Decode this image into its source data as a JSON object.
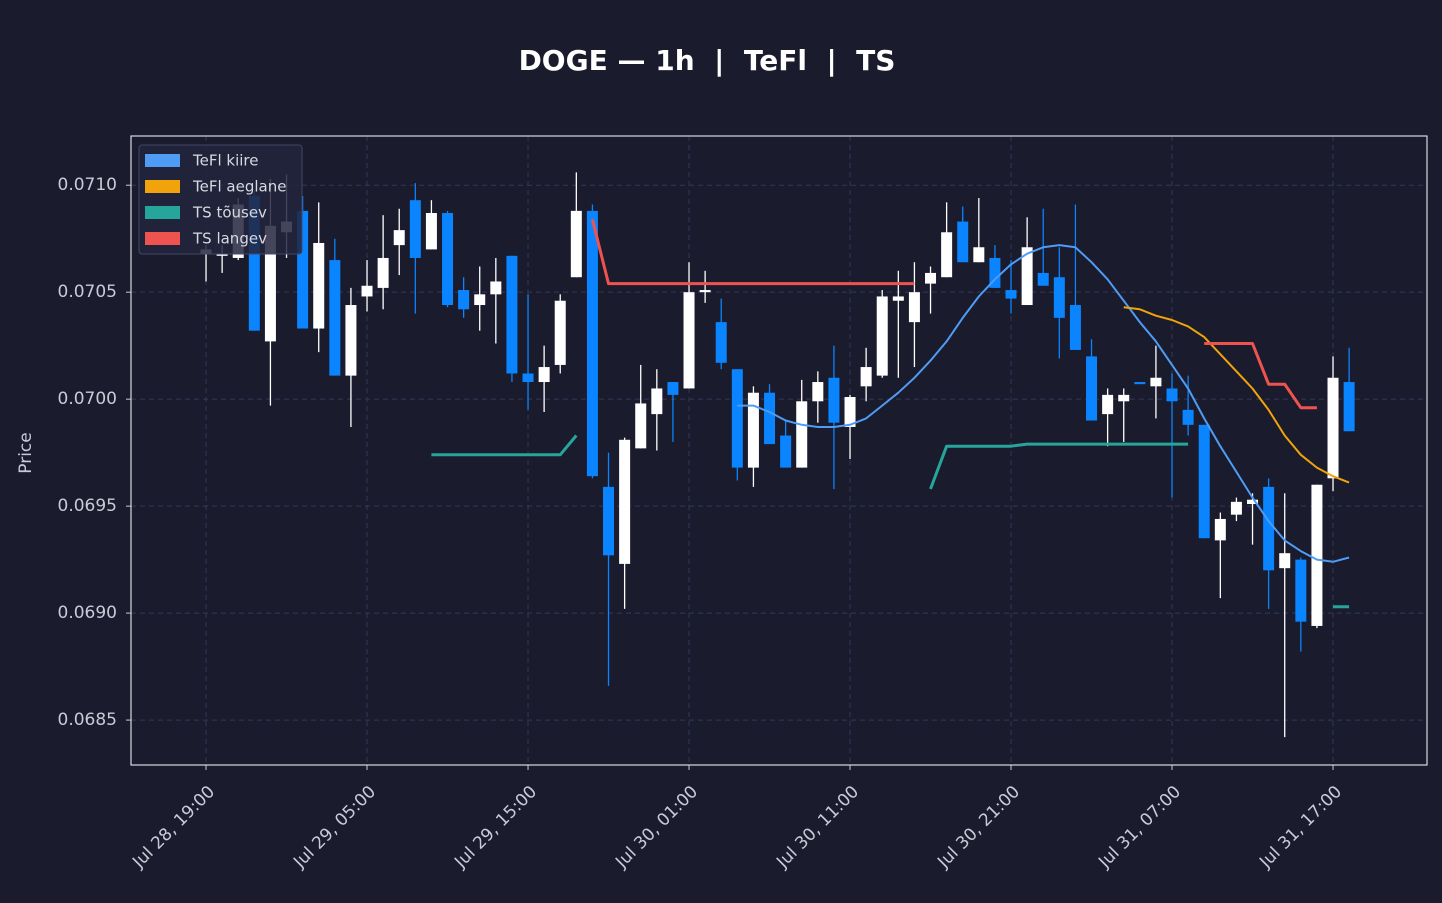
{
  "chart_data": {
    "type": "candlestick",
    "title": "DOGE — 1h  |  TeFl  |  TS",
    "y_label": "Price",
    "x": [
      "Jul 28, 19:00",
      "Jul 28, 20:00",
      "Jul 28, 21:00",
      "Jul 28, 22:00",
      "Jul 28, 23:00",
      "Jul 29, 00:00",
      "Jul 29, 01:00",
      "Jul 29, 02:00",
      "Jul 29, 03:00",
      "Jul 29, 04:00",
      "Jul 29, 05:00",
      "Jul 29, 06:00",
      "Jul 29, 07:00",
      "Jul 29, 08:00",
      "Jul 29, 09:00",
      "Jul 29, 10:00",
      "Jul 29, 11:00",
      "Jul 29, 12:00",
      "Jul 29, 13:00",
      "Jul 29, 14:00",
      "Jul 29, 15:00",
      "Jul 29, 16:00",
      "Jul 29, 17:00",
      "Jul 29, 18:00",
      "Jul 29, 19:00",
      "Jul 29, 20:00",
      "Jul 29, 21:00",
      "Jul 29, 22:00",
      "Jul 29, 23:00",
      "Jul 30, 00:00",
      "Jul 30, 01:00",
      "Jul 30, 02:00",
      "Jul 30, 03:00",
      "Jul 30, 04:00",
      "Jul 30, 05:00",
      "Jul 30, 06:00",
      "Jul 30, 07:00",
      "Jul 30, 08:00",
      "Jul 30, 09:00",
      "Jul 30, 10:00",
      "Jul 30, 11:00",
      "Jul 30, 12:00",
      "Jul 30, 13:00",
      "Jul 30, 14:00",
      "Jul 30, 15:00",
      "Jul 30, 16:00",
      "Jul 30, 17:00",
      "Jul 30, 18:00",
      "Jul 30, 19:00",
      "Jul 30, 20:00",
      "Jul 30, 21:00",
      "Jul 30, 22:00",
      "Jul 30, 23:00",
      "Jul 31, 00:00",
      "Jul 31, 01:00",
      "Jul 31, 02:00",
      "Jul 31, 03:00",
      "Jul 31, 04:00",
      "Jul 31, 05:00",
      "Jul 31, 06:00",
      "Jul 31, 07:00",
      "Jul 31, 08:00",
      "Jul 31, 09:00",
      "Jul 31, 10:00",
      "Jul 31, 11:00",
      "Jul 31, 12:00",
      "Jul 31, 13:00",
      "Jul 31, 14:00",
      "Jul 31, 15:00",
      "Jul 31, 16:00",
      "Jul 31, 17:00",
      "Jul 31, 18:00"
    ],
    "open": [
      0.07068,
      0.07067,
      0.07066,
      0.07095,
      0.07027,
      0.07078,
      0.07088,
      0.07033,
      0.07065,
      0.07011,
      0.07048,
      0.07052,
      0.07072,
      0.07093,
      0.0707,
      0.07087,
      0.07051,
      0.07044,
      0.07049,
      0.07067,
      0.07012,
      0.07008,
      0.07016,
      0.07057,
      0.07088,
      0.06959,
      0.06923,
      0.06977,
      0.06993,
      0.07008,
      0.07005,
      0.0705,
      0.07036,
      0.07014,
      0.06968,
      0.07003,
      0.06983,
      0.06968,
      0.06999,
      0.0701,
      0.06987,
      0.07006,
      0.07011,
      0.07046,
      0.07036,
      0.07054,
      0.07057,
      0.07083,
      0.07064,
      0.07066,
      0.07051,
      0.07044,
      0.07059,
      0.07057,
      0.07044,
      0.0702,
      0.06993,
      0.06999,
      0.07008,
      0.07006,
      0.07005,
      0.06995,
      0.06988,
      0.06934,
      0.06946,
      0.06951,
      0.06959,
      0.06921,
      0.06925,
      0.06894,
      0.06963,
      0.07008
    ],
    "high": [
      0.07072,
      0.07072,
      0.07094,
      0.07098,
      0.07103,
      0.07105,
      0.07095,
      0.07092,
      0.07075,
      0.07052,
      0.07065,
      0.07086,
      0.07089,
      0.07101,
      0.07093,
      0.07088,
      0.07057,
      0.07062,
      0.07066,
      0.07067,
      0.07049,
      0.07025,
      0.07049,
      0.07106,
      0.07091,
      0.06975,
      0.06982,
      0.07016,
      0.07014,
      0.07008,
      0.07064,
      0.0706,
      0.07047,
      0.07014,
      0.07006,
      0.07007,
      0.0699,
      0.07009,
      0.07013,
      0.07025,
      0.07002,
      0.07024,
      0.07051,
      0.0706,
      0.07064,
      0.07062,
      0.07092,
      0.0709,
      0.07094,
      0.07072,
      0.07065,
      0.07085,
      0.07089,
      0.07071,
      0.07091,
      0.07028,
      0.07005,
      0.07005,
      0.07008,
      0.07025,
      0.07012,
      0.07011,
      0.06988,
      0.06947,
      0.06954,
      0.06956,
      0.06963,
      0.06956,
      0.06926,
      0.0696,
      0.0702,
      0.07024
    ],
    "low": [
      0.07055,
      0.07059,
      0.07065,
      0.07032,
      0.06997,
      0.07066,
      0.07033,
      0.07022,
      0.07011,
      0.06987,
      0.07041,
      0.07042,
      0.07058,
      0.0704,
      0.0707,
      0.07043,
      0.07038,
      0.07032,
      0.07026,
      0.07008,
      0.06995,
      0.06994,
      0.07012,
      0.07057,
      0.06963,
      0.06866,
      0.06902,
      0.06977,
      0.06976,
      0.0698,
      0.07005,
      0.07045,
      0.07014,
      0.06962,
      0.06959,
      0.06979,
      0.06968,
      0.06968,
      0.06989,
      0.06958,
      0.06972,
      0.06999,
      0.0701,
      0.0701,
      0.07015,
      0.0704,
      0.07057,
      0.07064,
      0.07064,
      0.07052,
      0.0704,
      0.07044,
      0.07053,
      0.07019,
      0.07023,
      0.0699,
      0.06978,
      0.0698,
      0.07007,
      0.06991,
      0.06954,
      0.06983,
      0.06935,
      0.06907,
      0.06943,
      0.06932,
      0.06902,
      0.06842,
      0.06882,
      0.06893,
      0.06957,
      0.06985
    ],
    "close": [
      0.0707,
      0.07068,
      0.07091,
      0.07032,
      0.07081,
      0.07083,
      0.07033,
      0.07073,
      0.07011,
      0.07044,
      0.07053,
      0.07066,
      0.07079,
      0.07066,
      0.07087,
      0.07044,
      0.07042,
      0.07049,
      0.07055,
      0.07012,
      0.07008,
      0.07015,
      0.07046,
      0.07088,
      0.06964,
      0.06927,
      0.06981,
      0.06998,
      0.07005,
      0.07002,
      0.0705,
      0.07051,
      0.07017,
      0.06968,
      0.07003,
      0.06979,
      0.06968,
      0.06999,
      0.07008,
      0.06989,
      0.07001,
      0.07015,
      0.07048,
      0.07048,
      0.0705,
      0.07059,
      0.07078,
      0.07064,
      0.07071,
      0.07052,
      0.07047,
      0.07071,
      0.07053,
      0.07038,
      0.07023,
      0.0699,
      0.07002,
      0.07002,
      0.07007,
      0.0701,
      0.06999,
      0.06988,
      0.06935,
      0.06944,
      0.06952,
      0.06953,
      0.0692,
      0.06928,
      0.06896,
      0.0696,
      0.0701,
      0.06985
    ],
    "up_color": "#ffffff",
    "down_color": "#0a84ff",
    "series": [
      {
        "name": "TeFl kiire",
        "color": "#4f9cf5",
        "values": [
          null,
          null,
          null,
          null,
          null,
          null,
          null,
          null,
          null,
          null,
          null,
          null,
          null,
          null,
          null,
          null,
          null,
          null,
          null,
          null,
          null,
          null,
          null,
          null,
          null,
          null,
          null,
          null,
          null,
          null,
          null,
          null,
          null,
          0.06997,
          0.06997,
          0.06994,
          0.0699,
          0.06988,
          0.06987,
          0.06987,
          0.06988,
          0.06991,
          0.06997,
          0.07003,
          0.0701,
          0.07018,
          0.07027,
          0.07038,
          0.07048,
          0.07056,
          0.07063,
          0.07068,
          0.07071,
          0.07072,
          0.07071,
          0.07064,
          0.07056,
          0.07046,
          0.07036,
          0.07027,
          0.07016,
          0.07005,
          0.06991,
          0.06978,
          0.06966,
          0.06954,
          0.06943,
          0.06934,
          0.06929,
          0.06925,
          0.06924,
          0.06926
        ]
      },
      {
        "name": "TeFl aeglane",
        "color": "#f0a30a",
        "values": [
          null,
          null,
          null,
          null,
          null,
          null,
          null,
          null,
          null,
          null,
          null,
          null,
          null,
          null,
          null,
          null,
          null,
          null,
          null,
          null,
          null,
          null,
          null,
          null,
          null,
          null,
          null,
          null,
          null,
          null,
          null,
          null,
          null,
          null,
          null,
          null,
          null,
          null,
          null,
          null,
          null,
          null,
          null,
          null,
          null,
          null,
          null,
          null,
          null,
          null,
          null,
          null,
          null,
          null,
          null,
          null,
          null,
          0.07043,
          0.07042,
          0.07039,
          0.07037,
          0.07034,
          0.07029,
          0.07021,
          0.07013,
          0.07005,
          0.06995,
          0.06983,
          0.06974,
          0.06968,
          0.06964,
          0.06961
        ]
      },
      {
        "name": "TS tõusev",
        "color": "#26a69a",
        "values": [
          null,
          null,
          null,
          null,
          null,
          null,
          null,
          null,
          null,
          null,
          null,
          null,
          null,
          null,
          0.06974,
          0.06974,
          0.06974,
          0.06974,
          0.06974,
          0.06974,
          0.06974,
          0.06974,
          0.06974,
          0.06983,
          null,
          null,
          null,
          null,
          null,
          null,
          null,
          null,
          null,
          null,
          null,
          null,
          null,
          null,
          null,
          null,
          null,
          null,
          null,
          null,
          null,
          0.06958,
          0.06978,
          0.06978,
          0.06978,
          0.06978,
          0.06978,
          0.06979,
          0.06979,
          0.06979,
          0.06979,
          0.06979,
          0.06979,
          0.06979,
          0.06979,
          0.06979,
          0.06979,
          0.06979,
          null,
          null,
          null,
          null,
          null,
          null,
          null,
          null,
          0.06903,
          0.06903
        ]
      },
      {
        "name": "TS langev",
        "color": "#ef5350",
        "values": [
          null,
          null,
          null,
          null,
          null,
          null,
          null,
          null,
          null,
          null,
          null,
          null,
          null,
          null,
          null,
          null,
          null,
          null,
          null,
          null,
          null,
          null,
          null,
          null,
          0.07084,
          0.07054,
          0.07054,
          0.07054,
          0.07054,
          0.07054,
          0.07054,
          0.07054,
          0.07054,
          0.07054,
          0.07054,
          0.07054,
          0.07054,
          0.07054,
          0.07054,
          0.07054,
          0.07054,
          0.07054,
          0.07054,
          0.07054,
          0.07054,
          null,
          null,
          null,
          null,
          null,
          null,
          null,
          null,
          null,
          null,
          null,
          null,
          null,
          null,
          null,
          null,
          null,
          0.07026,
          0.07026,
          0.07026,
          0.07026,
          0.07007,
          0.07007,
          0.06996,
          0.06996,
          null,
          null
        ]
      }
    ],
    "ylim": [
      0.06829,
      0.07123
    ],
    "yticks": [
      0.0685,
      {
        "value": 0.069,
        "label": "0.0690"
      },
      0.0695,
      {
        "value": 0.07,
        "label": "0.0700"
      },
      0.0705,
      {
        "value": 0.071,
        "label": "0.0710"
      }
    ],
    "xticks": [
      "Jul 28, 19:00",
      "Jul 29, 05:00",
      "Jul 29, 15:00",
      "Jul 30, 01:00",
      "Jul 30, 11:00",
      "Jul 30, 21:00",
      "Jul 31, 07:00",
      "Jul 31, 17:00"
    ],
    "grid": true,
    "legend": "upper left"
  }
}
